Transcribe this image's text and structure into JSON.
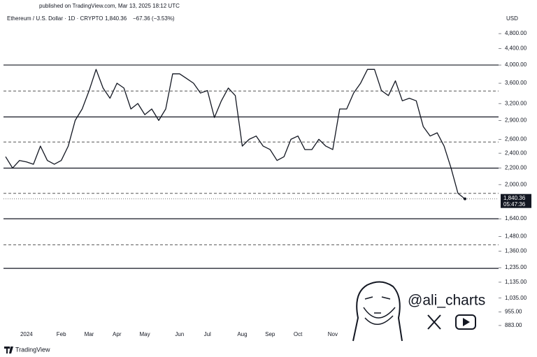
{
  "chart_data": {
    "type": "line",
    "published": "published on TradingView.com, Mar 13, 2025 18:12 UTC",
    "title": "Ethereum / U.S. Dollar · 1D · CRYPTO",
    "price_text": "1,840.36",
    "change_text": "−67.36 (−3.53%)",
    "currency": "USD",
    "watermark": "@ali_charts",
    "brand": "TradingView",
    "log_scale": true,
    "categories": [
      null,
      null,
      null,
      "2024",
      null,
      null,
      null,
      null,
      "Feb",
      null,
      null,
      null,
      "Mar",
      null,
      null,
      null,
      "Apr",
      null,
      null,
      null,
      "May",
      null,
      null,
      null,
      null,
      "Jun",
      null,
      null,
      null,
      "Jul",
      null,
      null,
      null,
      null,
      "Aug",
      null,
      null,
      null,
      "Sep",
      null,
      null,
      null,
      "Oct",
      null,
      null,
      null,
      null,
      "Nov",
      null,
      null,
      null,
      null,
      null,
      null,
      null,
      null,
      null,
      null,
      null,
      null,
      null,
      null,
      null,
      null,
      null,
      null,
      null
    ],
    "series": [
      {
        "name": "ETHUSD",
        "color": "#131722",
        "values": [
          2350,
          2200,
          2300,
          2280,
          2250,
          2500,
          2300,
          2250,
          2300,
          2500,
          2900,
          3100,
          3450,
          3900,
          3500,
          3300,
          3600,
          3500,
          3100,
          3200,
          3000,
          3100,
          2900,
          3100,
          3800,
          3800,
          3700,
          3600,
          3400,
          3450,
          2950,
          3250,
          3500,
          3350,
          2500,
          2600,
          2650,
          2500,
          2450,
          2300,
          2350,
          2600,
          2650,
          2450,
          2450,
          2600,
          2500,
          2450,
          3100,
          3100,
          3400,
          3600,
          3900,
          3900,
          3450,
          3350,
          3650,
          3250,
          3300,
          3250,
          2800,
          2650,
          2700,
          2500,
          2200,
          1900,
          1840.36
        ]
      }
    ],
    "last_price": {
      "value": 1840.36,
      "label": "1,840.36",
      "countdown": "05:47:36"
    },
    "levels_solid": [
      4000,
      2960,
      2200,
      1640,
      1230
    ],
    "levels_dashed": [
      3440,
      2560,
      1900,
      1410
    ],
    "ylim": [
      824,
      5000
    ],
    "yticks": [
      {
        "value": 4800,
        "label": "4,800.00"
      },
      {
        "value": 4400,
        "label": "4,400.00"
      },
      {
        "value": 4000,
        "label": "4,000.00"
      },
      {
        "value": 3600,
        "label": "3,600.00"
      },
      {
        "value": 3200,
        "label": "3,200.00"
      },
      {
        "value": 2900,
        "label": "2,900.00"
      },
      {
        "value": 2600,
        "label": "2,600.00"
      },
      {
        "value": 2400,
        "label": "2,400.00"
      },
      {
        "value": 2200,
        "label": "2,200.00"
      },
      {
        "value": 2000,
        "label": "2,000.00"
      },
      {
        "value": 1640,
        "label": "1,640.00"
      },
      {
        "value": 1480,
        "label": "1,480.00"
      },
      {
        "value": 1360,
        "label": "1,360.00"
      },
      {
        "value": 1235,
        "label": "1,235.00"
      },
      {
        "value": 1135,
        "label": "1,135.00"
      },
      {
        "value": 1035,
        "label": "1,035.00"
      },
      {
        "value": 955,
        "label": "955.00"
      },
      {
        "value": 883,
        "label": "883.00"
      }
    ]
  }
}
